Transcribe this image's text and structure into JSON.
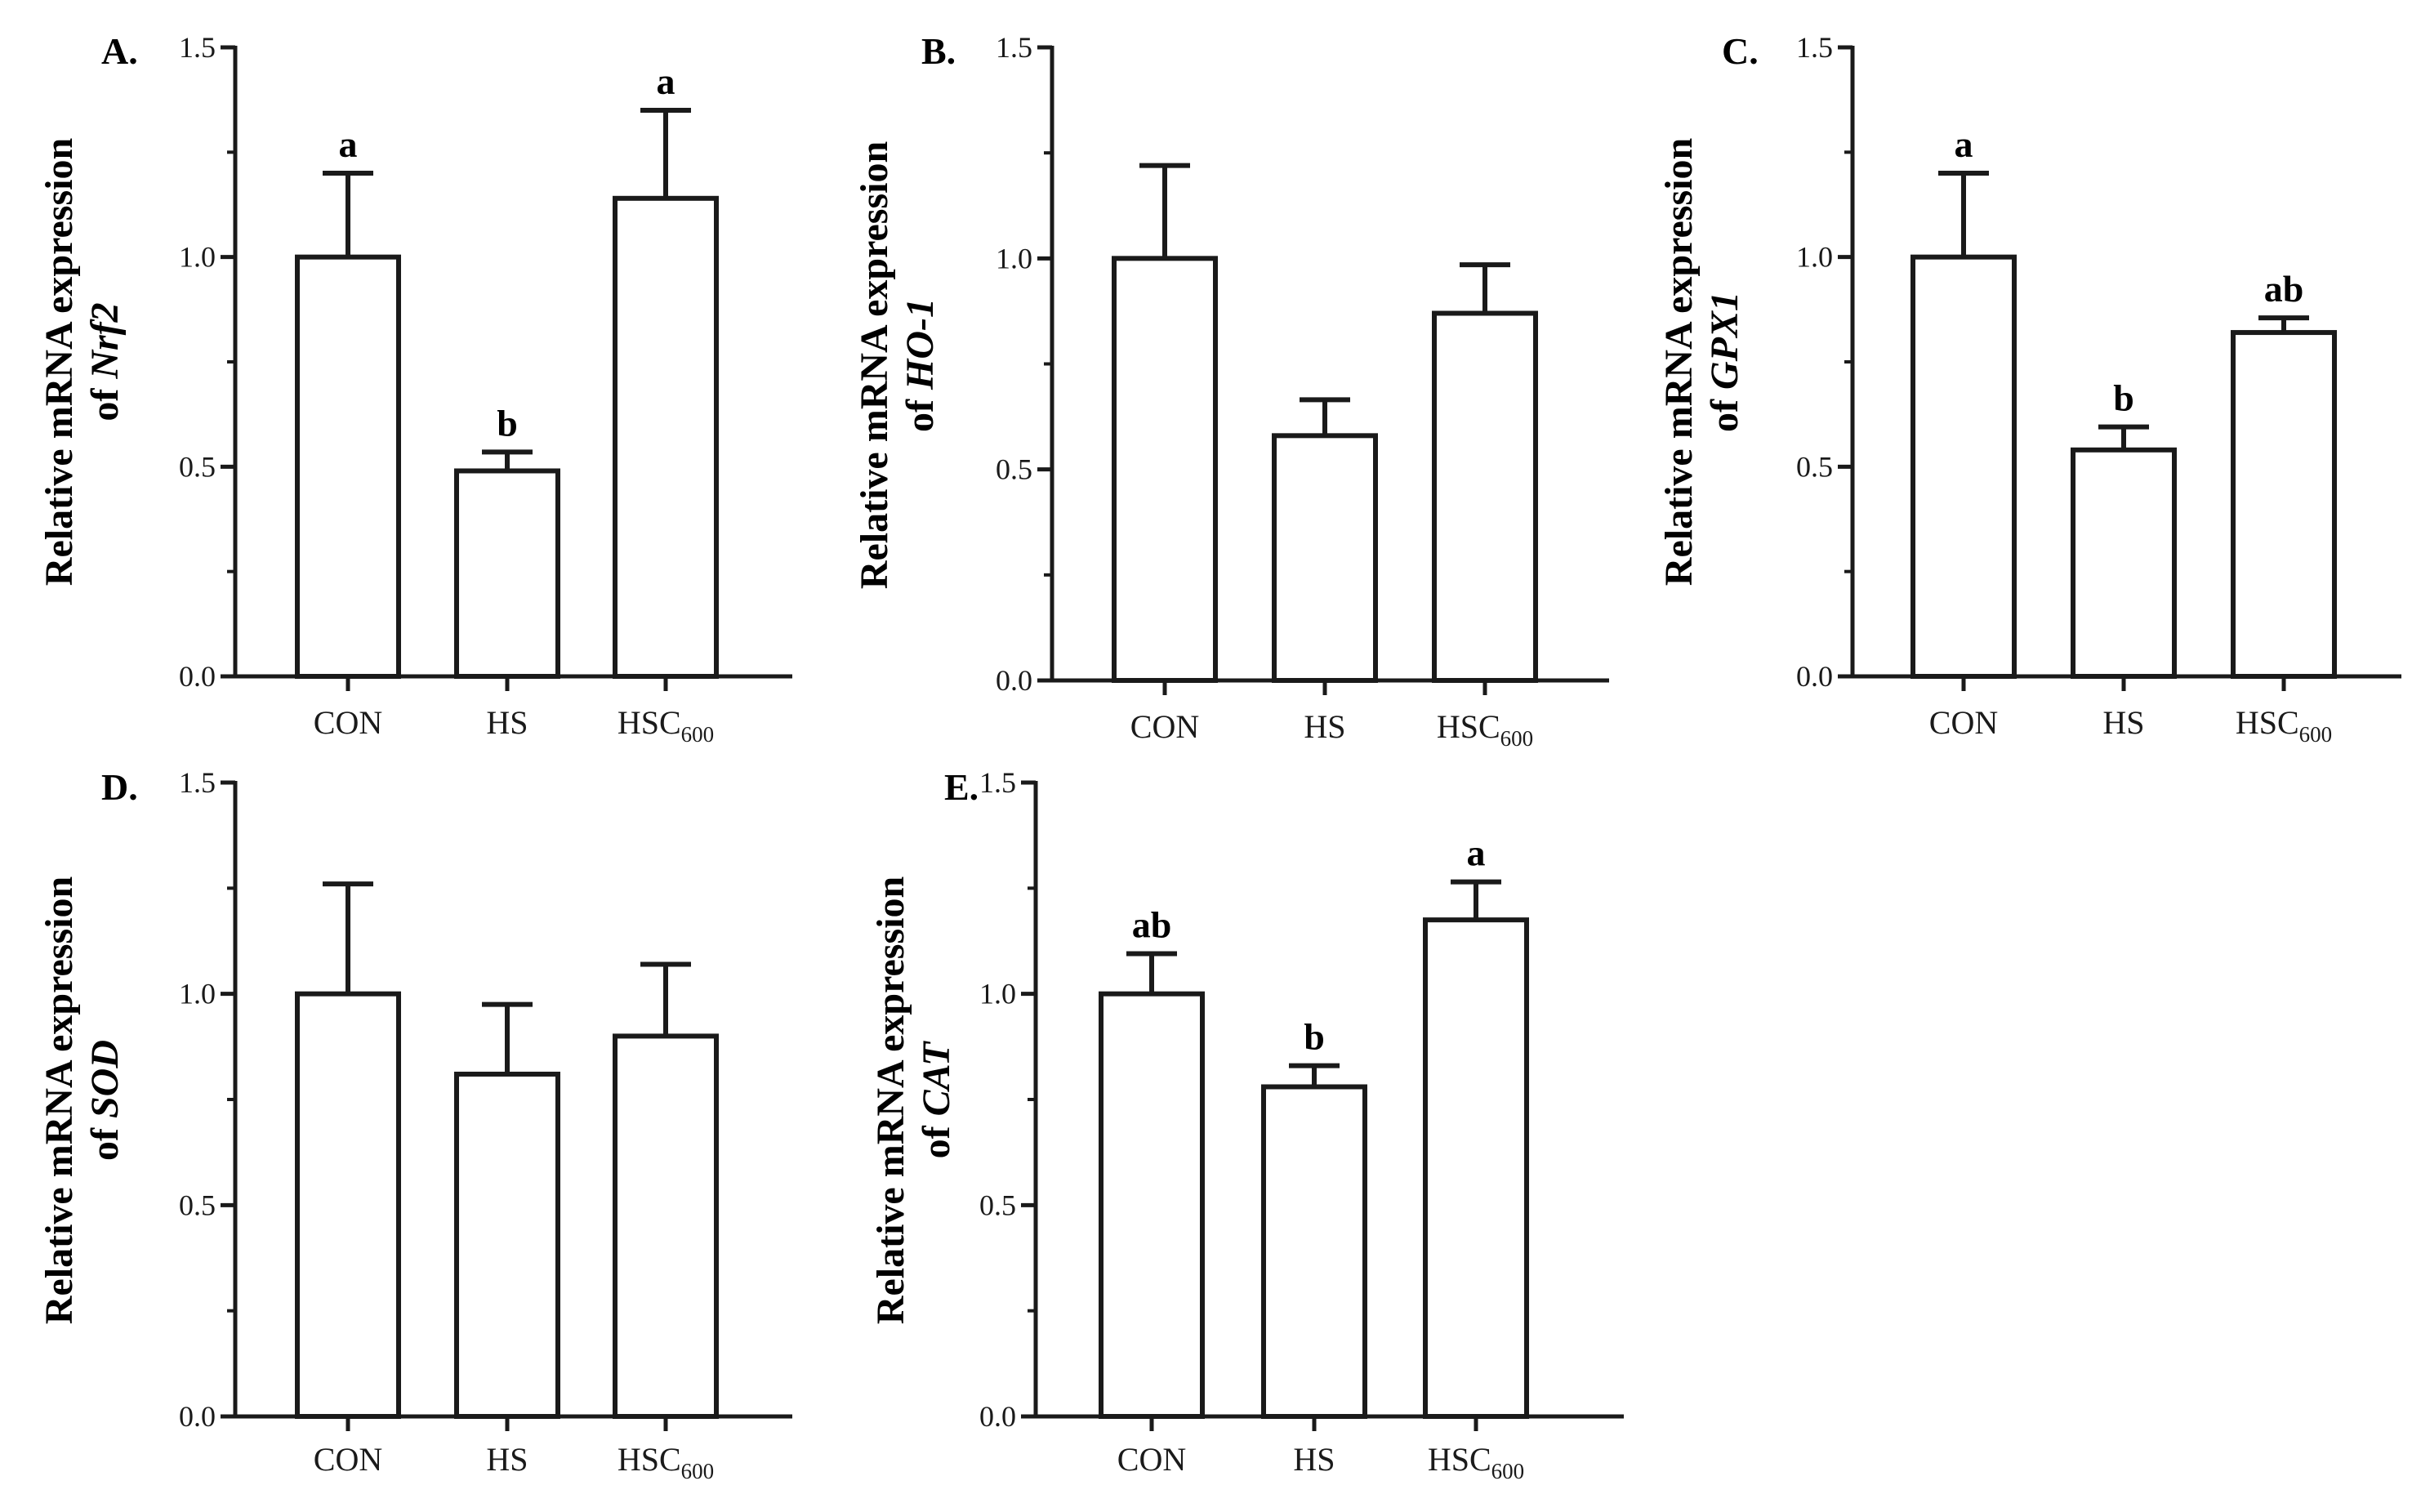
{
  "chart_data": [
    {
      "type": "bar",
      "panel_label": "A.",
      "ylabel_prefix": "Relative mRNA expression",
      "ylabel_of": "of ",
      "ylabel_gene": "Nrf2",
      "ylim": [
        0,
        1.5
      ],
      "yticks": [
        "0.0",
        "0.5",
        "1.0",
        "1.5"
      ],
      "categories": [
        {
          "main": "CON",
          "sub": ""
        },
        {
          "main": "HS",
          "sub": ""
        },
        {
          "main": "HSC",
          "sub": "600"
        }
      ],
      "values": [
        1.0,
        0.49,
        1.14
      ],
      "errors": [
        0.2,
        0.045,
        0.21
      ],
      "significance": [
        "a",
        "b",
        "a"
      ]
    },
    {
      "type": "bar",
      "panel_label": "B.",
      "ylabel_prefix": "Relative mRNA expression",
      "ylabel_of": "of ",
      "ylabel_gene": "HO-1",
      "ylim": [
        0,
        1.5
      ],
      "yticks": [
        "0.0",
        "0.5",
        "1.0",
        "1.5"
      ],
      "categories": [
        {
          "main": "CON",
          "sub": ""
        },
        {
          "main": "HS",
          "sub": ""
        },
        {
          "main": "HSC",
          "sub": "600"
        }
      ],
      "values": [
        1.0,
        0.58,
        0.87
      ],
      "errors": [
        0.22,
        0.085,
        0.115
      ],
      "significance": [
        "",
        "",
        ""
      ]
    },
    {
      "type": "bar",
      "panel_label": "C.",
      "ylabel_prefix": "Relative mRNA expression",
      "ylabel_of": "of ",
      "ylabel_gene": "GPX1",
      "ylim": [
        0,
        1.5
      ],
      "yticks": [
        "0.0",
        "0.5",
        "1.0",
        "1.5"
      ],
      "categories": [
        {
          "main": "CON",
          "sub": ""
        },
        {
          "main": "HS",
          "sub": ""
        },
        {
          "main": "HSC",
          "sub": "600"
        }
      ],
      "values": [
        1.0,
        0.54,
        0.82
      ],
      "errors": [
        0.2,
        0.055,
        0.035
      ],
      "significance": [
        "a",
        "b",
        "ab"
      ]
    },
    {
      "type": "bar",
      "panel_label": "D.",
      "ylabel_prefix": "Relative mRNA expression",
      "ylabel_of": "of ",
      "ylabel_gene": "SOD",
      "ylim": [
        0,
        1.5
      ],
      "yticks": [
        "0.0",
        "0.5",
        "1.0",
        "1.5"
      ],
      "categories": [
        {
          "main": "CON",
          "sub": ""
        },
        {
          "main": "HS",
          "sub": ""
        },
        {
          "main": "HSC",
          "sub": "600"
        }
      ],
      "values": [
        1.0,
        0.81,
        0.9
      ],
      "errors": [
        0.26,
        0.165,
        0.17
      ],
      "significance": [
        "",
        "",
        ""
      ]
    },
    {
      "type": "bar",
      "panel_label": "E.",
      "ylabel_prefix": "Relative mRNA expression",
      "ylabel_of": "of ",
      "ylabel_gene": "CAT",
      "ylim": [
        0,
        1.5
      ],
      "yticks": [
        "0.0",
        "0.5",
        "1.0",
        "1.5"
      ],
      "categories": [
        {
          "main": "CON",
          "sub": ""
        },
        {
          "main": "HS",
          "sub": ""
        },
        {
          "main": "HSC",
          "sub": "600"
        }
      ],
      "values": [
        1.0,
        0.78,
        1.175
      ],
      "errors": [
        0.095,
        0.05,
        0.09
      ],
      "significance": [
        "ab",
        "b",
        "a"
      ]
    }
  ]
}
